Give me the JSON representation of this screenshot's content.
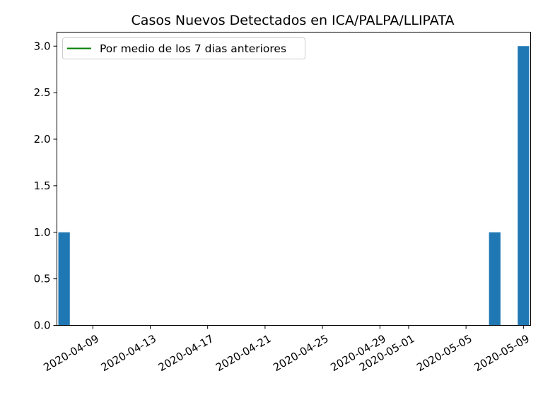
{
  "chart_data": {
    "type": "bar",
    "title": "Casos Nuevos Detectados en ICA/PALPA/LLIPATA",
    "xlabel": "",
    "ylabel": "",
    "x_dates": [
      "2020-04-07",
      "2020-05-07",
      "2020-05-09"
    ],
    "values": [
      1,
      1,
      3
    ],
    "xlim": [
      "2020-04-07",
      "2020-05-09"
    ],
    "ylim": [
      0,
      3.15
    ],
    "x_ticks": [
      "2020-04-09",
      "2020-04-13",
      "2020-04-17",
      "2020-04-21",
      "2020-04-25",
      "2020-04-29",
      "2020-05-01",
      "2020-05-05",
      "2020-05-09"
    ],
    "y_ticks": [
      "0.0",
      "0.5",
      "1.0",
      "1.5",
      "2.0",
      "2.5",
      "3.0"
    ],
    "bar_color": "#1f77b4",
    "legend": {
      "placement": "upper-left",
      "entries": [
        {
          "label": "Por medio de los 7 dias anteriores",
          "color": "#008000",
          "marker": "line"
        }
      ]
    }
  }
}
